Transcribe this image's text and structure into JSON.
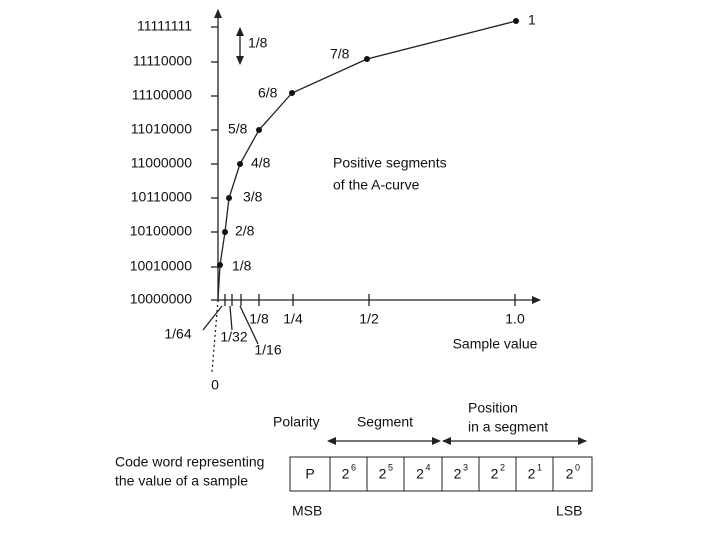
{
  "y_labels": [
    "11111111",
    "11110000",
    "11100000",
    "11010000",
    "11000000",
    "10110000",
    "10100000",
    "10010000",
    "10000000"
  ],
  "step_label": "1/8",
  "point_labels": [
    "1/8",
    "2/8",
    "3/8",
    "4/8",
    "5/8",
    "6/8",
    "7/8",
    "1"
  ],
  "x_labels": [
    "1/64",
    "1/32",
    "1/16",
    "1/8",
    "1/4",
    "1/2",
    "1.0"
  ],
  "x_axis_title": "Sample value",
  "origin_label": "0",
  "annotation": [
    "Positive segments",
    "of the A-curve"
  ],
  "code_word": {
    "caption": [
      "Code word representing",
      "the value of a sample"
    ],
    "polarity": "Polarity",
    "segment": "Segment",
    "position": [
      "Position",
      "in a segment"
    ],
    "cells": [
      {
        "base": "P"
      },
      {
        "base": "2",
        "exp": "6"
      },
      {
        "base": "2",
        "exp": "5"
      },
      {
        "base": "2",
        "exp": "4"
      },
      {
        "base": "2",
        "exp": "3"
      },
      {
        "base": "2",
        "exp": "2"
      },
      {
        "base": "2",
        "exp": "1"
      },
      {
        "base": "2",
        "exp": "0"
      }
    ],
    "msb": "MSB",
    "lsb": "LSB"
  }
}
